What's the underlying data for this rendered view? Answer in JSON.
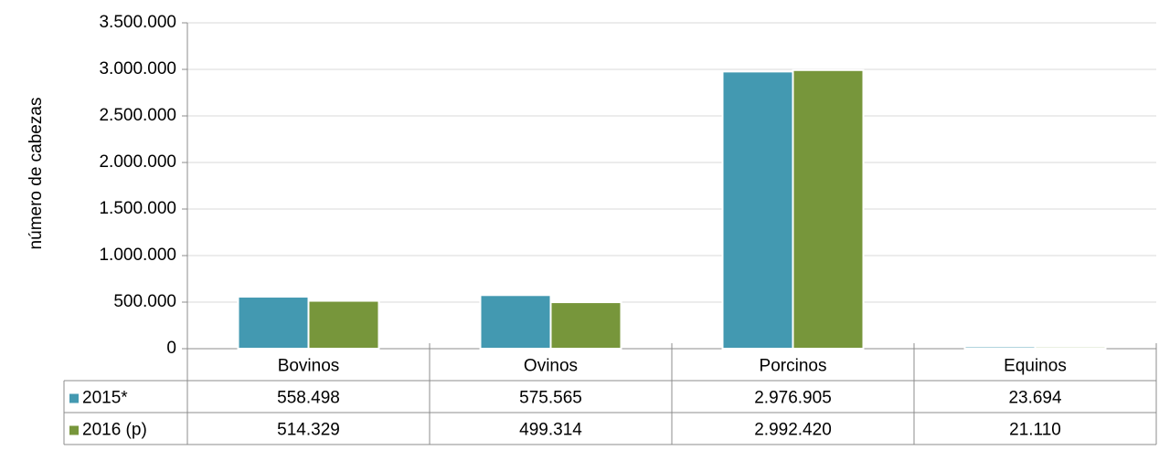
{
  "chart_data": {
    "type": "bar",
    "y_label": "número de cabezas",
    "categories": [
      "Bovinos",
      "Ovinos",
      "Porcinos",
      "Equinos"
    ],
    "series": [
      {
        "name": "2015*",
        "color": "#4399b1",
        "values": [
          558498,
          575565,
          2976905,
          23694
        ],
        "value_labels": [
          "558.498",
          "575.565",
          "2.976.905",
          "23.694"
        ]
      },
      {
        "name": "2016 (p)",
        "color": "#77963b",
        "values": [
          514329,
          499314,
          2992420,
          21110
        ],
        "value_labels": [
          "514.329",
          "499.314",
          "2.992.420",
          "21.110"
        ]
      }
    ],
    "ylim": [
      0,
      3500000
    ],
    "yticks": [
      0,
      {
        "value": 500000,
        "label": "500.000"
      },
      {
        "value": 1000000,
        "label": "1.000.000"
      },
      {
        "value": 1500000,
        "label": "1.500.000"
      },
      {
        "value": 2000000,
        "label": "2.000.000"
      },
      {
        "value": 2500000,
        "label": "2.500.000"
      },
      {
        "value": 3000000,
        "label": "3.000.000"
      },
      {
        "value": 3500000,
        "label": "3.500.000"
      }
    ],
    "grid": true
  }
}
